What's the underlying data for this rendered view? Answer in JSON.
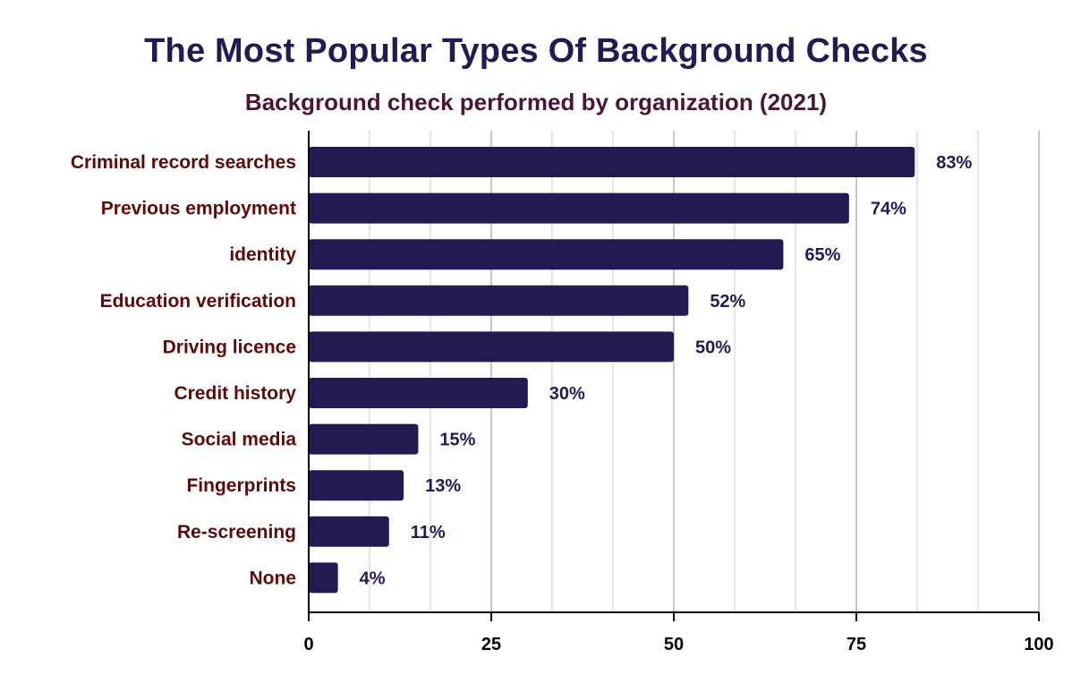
{
  "chart_data": {
    "type": "bar",
    "orientation": "horizontal",
    "title": "The Most Popular Types Of Background Checks",
    "subtitle": "Background check performed by organization (2021)",
    "xlabel": "",
    "ylabel": "",
    "categories": [
      "Criminal record searches",
      "Previous employment",
      "identity",
      "Education verification",
      "Driving licence",
      "Credit history",
      "Social media",
      "Fingerprints",
      "Re-screening",
      "None"
    ],
    "values": [
      83,
      74,
      65,
      52,
      50,
      30,
      15,
      13,
      11,
      4
    ],
    "data_labels": [
      "83%",
      "74%",
      "65%",
      "52%",
      "50%",
      "30%",
      "15%",
      "13%",
      "11%",
      "4%"
    ],
    "xlim": [
      0,
      100
    ],
    "x_ticks": [
      0,
      25,
      50,
      75,
      100
    ],
    "x_tick_labels": [
      "0",
      "25",
      "50",
      "75",
      "100"
    ],
    "grid": true,
    "legend": "none",
    "colors": {
      "bar": "#231a52",
      "title": "#231a52",
      "subtitle": "#4a1638",
      "category_label": "#5c0a0a",
      "data_label": "#231a52",
      "major_grid": "#c8c8c8",
      "minor_grid": "#e4e4e4",
      "axis": "#000000"
    }
  }
}
